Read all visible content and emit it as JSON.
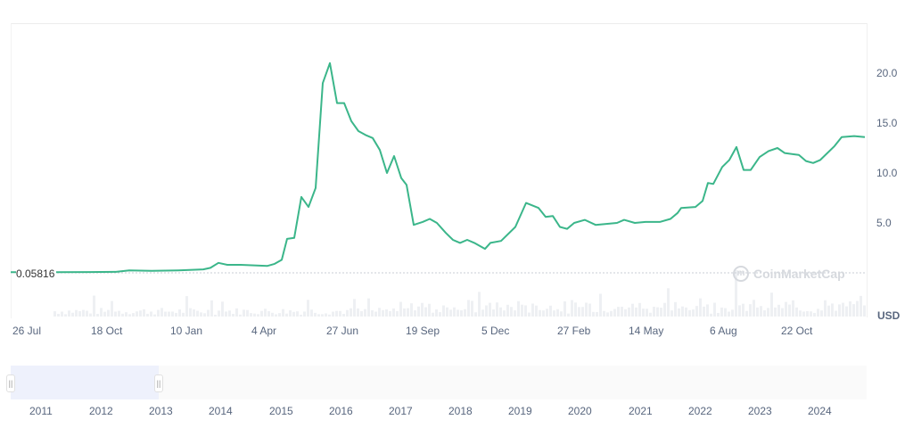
{
  "chart_data": {
    "type": "line",
    "title": "",
    "xlabel": "",
    "ylabel": "USD",
    "currency": "USD",
    "ylim": [
      0,
      24
    ],
    "yticks": [
      "5.0",
      "10.0",
      "15.0",
      "20.0"
    ],
    "baseline_value": "0.05816",
    "xticks": [
      "26 Jul",
      "18 Oct",
      "10 Jan",
      "4 Apr",
      "27 Jun",
      "19 Sep",
      "5 Dec",
      "27 Feb",
      "14 May",
      "6 Aug",
      "22 Oct"
    ],
    "navigator_years": [
      "2011",
      "2012",
      "2013",
      "2014",
      "2015",
      "2016",
      "2017",
      "2018",
      "2019",
      "2020",
      "2021",
      "2022",
      "2023",
      "2024"
    ],
    "line_color": "#16c784",
    "series": [
      {
        "name": "Price",
        "points": [
          [
            12,
            0.06
          ],
          [
            60,
            0.06
          ],
          [
            100,
            0.08
          ],
          [
            130,
            0.1
          ],
          [
            145,
            0.25
          ],
          [
            170,
            0.2
          ],
          [
            200,
            0.25
          ],
          [
            228,
            0.35
          ],
          [
            236,
            0.5
          ],
          [
            245,
            1.0
          ],
          [
            255,
            0.8
          ],
          [
            270,
            0.8
          ],
          [
            300,
            0.7
          ],
          [
            308,
            0.9
          ],
          [
            316,
            1.3
          ],
          [
            322,
            3.4
          ],
          [
            330,
            3.5
          ],
          [
            338,
            7.6
          ],
          [
            346,
            6.6
          ],
          [
            354,
            8.5
          ],
          [
            362,
            19.0
          ],
          [
            370,
            21.0
          ],
          [
            378,
            17.0
          ],
          [
            386,
            17.0
          ],
          [
            394,
            15.2
          ],
          [
            402,
            14.2
          ],
          [
            410,
            13.8
          ],
          [
            418,
            13.5
          ],
          [
            426,
            12.3
          ],
          [
            434,
            10.0
          ],
          [
            442,
            11.7
          ],
          [
            450,
            9.5
          ],
          [
            456,
            8.8
          ],
          [
            464,
            4.8
          ],
          [
            474,
            5.1
          ],
          [
            482,
            5.4
          ],
          [
            490,
            5.0
          ],
          [
            500,
            4.0
          ],
          [
            508,
            3.3
          ],
          [
            516,
            3.0
          ],
          [
            524,
            3.3
          ],
          [
            532,
            3.0
          ],
          [
            540,
            2.6
          ],
          [
            544,
            2.4
          ],
          [
            550,
            3.0
          ],
          [
            562,
            3.2
          ],
          [
            578,
            4.6
          ],
          [
            590,
            7.0
          ],
          [
            604,
            6.5
          ],
          [
            612,
            5.6
          ],
          [
            620,
            5.7
          ],
          [
            628,
            4.6
          ],
          [
            636,
            4.4
          ],
          [
            644,
            5.0
          ],
          [
            656,
            5.3
          ],
          [
            668,
            4.8
          ],
          [
            692,
            5.0
          ],
          [
            700,
            5.3
          ],
          [
            712,
            5.0
          ],
          [
            724,
            5.1
          ],
          [
            740,
            5.1
          ],
          [
            752,
            5.4
          ],
          [
            760,
            6.0
          ],
          [
            764,
            6.5
          ],
          [
            780,
            6.6
          ],
          [
            788,
            7.2
          ],
          [
            794,
            9.0
          ],
          [
            800,
            8.9
          ],
          [
            810,
            10.6
          ],
          [
            818,
            11.3
          ],
          [
            826,
            12.6
          ],
          [
            834,
            10.3
          ],
          [
            842,
            10.3
          ],
          [
            852,
            11.6
          ],
          [
            862,
            12.2
          ],
          [
            872,
            12.5
          ],
          [
            880,
            12.0
          ],
          [
            896,
            11.8
          ],
          [
            904,
            11.2
          ],
          [
            912,
            11.0
          ],
          [
            920,
            11.3
          ],
          [
            936,
            12.7
          ],
          [
            944,
            13.6
          ],
          [
            958,
            13.7
          ],
          [
            970,
            13.6
          ]
        ]
      }
    ],
    "volume_note": "faint grey volume bars along bottom of main plot"
  },
  "watermark": {
    "text": "CoinMarketCap",
    "icon": "coinmarketcap-logo-icon"
  },
  "navigator": {
    "handle_left_icon": "drag-handle-icon",
    "handle_right_icon": "drag-handle-icon"
  }
}
